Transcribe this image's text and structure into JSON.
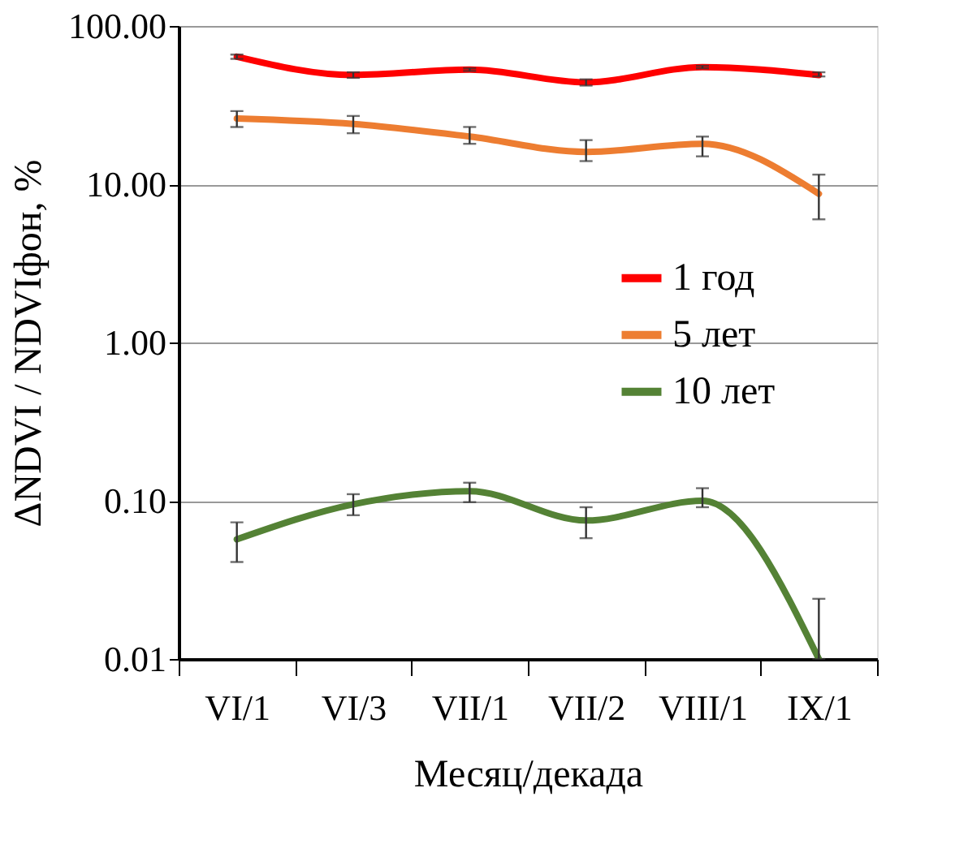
{
  "chart_data": {
    "type": "line",
    "xlabel": "Месяц/декада",
    "ylabel": "ΔNDVI / NDVIфон, %",
    "categories": [
      "VI/1",
      "VI/3",
      "VII/1",
      "VII/2",
      "VIII/1",
      "IX/1"
    ],
    "series": [
      {
        "name": "1 год",
        "color": "#ff0000",
        "values": [
          64,
          49,
          53,
          44,
          55,
          49
        ],
        "errors": [
          [
            62,
            66
          ],
          [
            47,
            51
          ],
          [
            52,
            54
          ],
          [
            42,
            46
          ],
          [
            54,
            56
          ],
          [
            48,
            51
          ]
        ]
      },
      {
        "name": "5 лет",
        "color": "#ed7d31",
        "values": [
          26,
          24,
          20,
          16,
          18,
          8.7
        ],
        "errors": [
          [
            23,
            29
          ],
          [
            21,
            27
          ],
          [
            18,
            23
          ],
          [
            14,
            19
          ],
          [
            15,
            20
          ],
          [
            6,
            11.5
          ]
        ]
      },
      {
        "name": "10 лет",
        "color": "#548235",
        "values": [
          0.057,
          0.095,
          0.115,
          0.075,
          0.1,
          0.01
        ],
        "errors": [
          [
            0.041,
            0.073
          ],
          [
            0.081,
            0.11
          ],
          [
            0.098,
            0.13
          ],
          [
            0.058,
            0.091
          ],
          [
            0.091,
            0.12
          ],
          [
            0.01,
            0.024
          ]
        ]
      }
    ],
    "log": true,
    "ylim": [
      0.01,
      100
    ],
    "yticks": [
      {
        "value": 0.01,
        "label": "0.01"
      },
      {
        "value": 0.1,
        "label": "0.10"
      },
      {
        "value": 1,
        "label": "1.00"
      },
      {
        "value": 10,
        "label": "10.00"
      },
      {
        "value": 100,
        "label": "100.00"
      }
    ],
    "grid": "y",
    "legend": "right",
    "marker": "none",
    "line_style": "solid"
  }
}
